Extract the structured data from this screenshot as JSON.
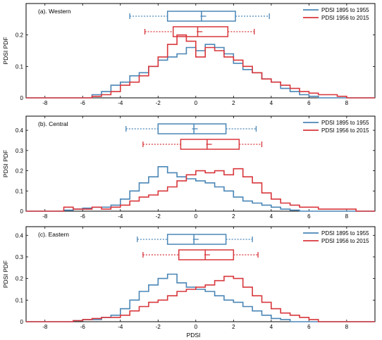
{
  "colors": {
    "series_1": "#4a86b6",
    "series_2": "#d8373c"
  },
  "chart_data": [
    {
      "type": "line",
      "title": "(a). Western",
      "xlabel": "",
      "ylabel": "PDSI PDF",
      "xlim": [
        -9,
        9.5
      ],
      "ylim": [
        0,
        0.3
      ],
      "yticks": [
        "0",
        "0.1",
        "0.2"
      ],
      "xticks": [
        "-8",
        "-6",
        "-4",
        "-2",
        "0",
        "2",
        "4",
        "6",
        "8"
      ],
      "legend_position": "top-right",
      "series": [
        {
          "name": "PDSI 1895 to 1955",
          "color": "#4a86b6",
          "x": [
            -6.0,
            -5.5,
            -5.0,
            -4.5,
            -4.0,
            -3.5,
            -3.0,
            -2.5,
            -2.0,
            -1.5,
            -1.0,
            -0.5,
            0.0,
            0.5,
            1.0,
            1.5,
            2.0,
            2.5,
            3.0,
            3.5,
            4.0,
            4.5,
            5.0,
            5.5,
            6.0,
            6.5
          ],
          "y": [
            0.0,
            0.01,
            0.02,
            0.04,
            0.05,
            0.07,
            0.08,
            0.1,
            0.12,
            0.13,
            0.14,
            0.16,
            0.15,
            0.17,
            0.16,
            0.14,
            0.11,
            0.09,
            0.08,
            0.06,
            0.05,
            0.03,
            0.02,
            0.01,
            0.005,
            0.0
          ],
          "box": {
            "whisker_low": -3.5,
            "q1": -1.5,
            "median": 0.3,
            "mean": 0.4,
            "q3": 2.1,
            "whisker_high": 3.9
          }
        },
        {
          "name": "PDSI 1956 to 2015",
          "color": "#d8373c",
          "x": [
            -6.0,
            -5.5,
            -5.0,
            -4.5,
            -4.0,
            -3.5,
            -3.0,
            -2.5,
            -2.0,
            -1.5,
            -1.0,
            -0.5,
            0.0,
            0.5,
            1.0,
            1.5,
            2.0,
            2.5,
            3.0,
            3.5,
            4.0,
            4.5,
            5.0,
            5.5,
            6.0,
            6.5,
            7.0,
            7.5,
            8.0
          ],
          "y": [
            0.0,
            0.005,
            0.01,
            0.02,
            0.04,
            0.05,
            0.07,
            0.1,
            0.13,
            0.17,
            0.2,
            0.18,
            0.13,
            0.16,
            0.15,
            0.13,
            0.12,
            0.1,
            0.08,
            0.06,
            0.05,
            0.04,
            0.03,
            0.02,
            0.015,
            0.01,
            0.01,
            0.005,
            0.0
          ],
          "box": {
            "whisker_low": -2.7,
            "q1": -1.2,
            "median": 0.1,
            "mean": 0.2,
            "q3": 1.7,
            "whisker_high": 3.1
          }
        }
      ]
    },
    {
      "type": "line",
      "title": "(b). Central",
      "xlabel": "",
      "ylabel": "PDSI PDF",
      "xlim": [
        -9,
        9.5
      ],
      "ylim": [
        0,
        0.47
      ],
      "yticks": [
        "0",
        "0.1",
        "0.2",
        "0.3",
        "0.4"
      ],
      "xticks": [
        "-8",
        "-6",
        "-4",
        "-2",
        "0",
        "2",
        "4",
        "6",
        "8"
      ],
      "legend_position": "top-right",
      "series": [
        {
          "name": "PDSI 1895 to 1955",
          "color": "#4a86b6",
          "x": [
            -7.5,
            -7.0,
            -6.5,
            -6.0,
            -5.5,
            -5.0,
            -4.5,
            -4.0,
            -3.5,
            -3.0,
            -2.5,
            -2.0,
            -1.5,
            -1.0,
            -0.5,
            0.0,
            0.5,
            1.0,
            1.5,
            2.0,
            2.5,
            3.0,
            3.5,
            4.0,
            4.5,
            5.0,
            5.5
          ],
          "y": [
            0.0,
            0.005,
            0.01,
            0.015,
            0.02,
            0.02,
            0.03,
            0.06,
            0.1,
            0.14,
            0.17,
            0.22,
            0.19,
            0.17,
            0.16,
            0.15,
            0.14,
            0.12,
            0.1,
            0.07,
            0.05,
            0.04,
            0.03,
            0.02,
            0.01,
            0.005,
            0.0
          ],
          "box": {
            "whisker_low": -3.7,
            "q1": -2.0,
            "median": -0.1,
            "mean": -0.05,
            "q3": 1.6,
            "whisker_high": 3.2
          }
        },
        {
          "name": "PDSI 1956 to 2015",
          "color": "#d8373c",
          "x": [
            -7.5,
            -7.0,
            -6.5,
            -6.0,
            -5.5,
            -5.0,
            -4.5,
            -4.0,
            -3.5,
            -3.0,
            -2.5,
            -2.0,
            -1.5,
            -1.0,
            -0.5,
            0.0,
            0.5,
            1.0,
            1.5,
            2.0,
            2.5,
            3.0,
            3.5,
            4.0,
            4.5,
            5.0,
            5.5,
            6.0,
            6.5,
            7.0,
            7.5,
            8.0,
            8.5
          ],
          "y": [
            0.0,
            0.02,
            0.01,
            0.01,
            0.02,
            0.01,
            0.02,
            0.03,
            0.05,
            0.07,
            0.08,
            0.1,
            0.12,
            0.15,
            0.18,
            0.2,
            0.19,
            0.2,
            0.18,
            0.21,
            0.17,
            0.14,
            0.09,
            0.06,
            0.04,
            0.03,
            0.02,
            0.02,
            0.01,
            0.01,
            0.01,
            0.01,
            0.0
          ],
          "box": {
            "whisker_low": -2.8,
            "q1": -0.8,
            "median": 0.6,
            "mean": 0.7,
            "q3": 2.3,
            "whisker_high": 3.5
          }
        }
      ]
    },
    {
      "type": "line",
      "title": "(c). Eastern",
      "xlabel": "PDSI",
      "ylabel": "PDSI PDF",
      "xlim": [
        -9,
        9.5
      ],
      "ylim": [
        0,
        0.44
      ],
      "yticks": [
        "0",
        "0.1",
        "0.2",
        "0.3",
        "0.4"
      ],
      "xticks": [
        "-8",
        "-6",
        "-4",
        "-2",
        "0",
        "2",
        "4",
        "6",
        "8"
      ],
      "legend_position": "top-right",
      "series": [
        {
          "name": "PDSI 1895 to 1955",
          "color": "#4a86b6",
          "x": [
            -7.0,
            -6.5,
            -6.0,
            -5.5,
            -5.0,
            -4.5,
            -4.0,
            -3.5,
            -3.0,
            -2.5,
            -2.0,
            -1.5,
            -1.0,
            -0.5,
            0.0,
            0.5,
            1.0,
            1.5,
            2.0,
            2.5,
            3.0,
            3.5,
            4.0,
            4.5,
            5.0
          ],
          "y": [
            0.0,
            0.005,
            0.01,
            0.01,
            0.02,
            0.03,
            0.06,
            0.1,
            0.14,
            0.17,
            0.2,
            0.22,
            0.18,
            0.16,
            0.15,
            0.14,
            0.12,
            0.1,
            0.09,
            0.07,
            0.05,
            0.03,
            0.015,
            0.01,
            0.0
          ],
          "box": {
            "whisker_low": -3.1,
            "q1": -1.5,
            "median": -0.1,
            "mean": 0.0,
            "q3": 1.6,
            "whisker_high": 3.0
          }
        },
        {
          "name": "PDSI 1956 to 2015",
          "color": "#d8373c",
          "x": [
            -7.0,
            -6.5,
            -6.0,
            -5.5,
            -5.0,
            -4.5,
            -4.0,
            -3.5,
            -3.0,
            -2.5,
            -2.0,
            -1.5,
            -1.0,
            -0.5,
            0.0,
            0.5,
            1.0,
            1.5,
            2.0,
            2.5,
            3.0,
            3.5,
            4.0,
            4.5,
            5.0,
            5.5,
            6.0,
            6.5
          ],
          "y": [
            0.0,
            0.005,
            0.01,
            0.015,
            0.02,
            0.02,
            0.03,
            0.05,
            0.07,
            0.09,
            0.1,
            0.12,
            0.14,
            0.15,
            0.16,
            0.17,
            0.19,
            0.21,
            0.2,
            0.16,
            0.12,
            0.09,
            0.06,
            0.04,
            0.03,
            0.02,
            0.01,
            0.0
          ],
          "box": {
            "whisker_low": -2.8,
            "q1": -0.9,
            "median": 0.5,
            "mean": 0.6,
            "q3": 2.0,
            "whisker_high": 3.3
          }
        }
      ]
    }
  ]
}
